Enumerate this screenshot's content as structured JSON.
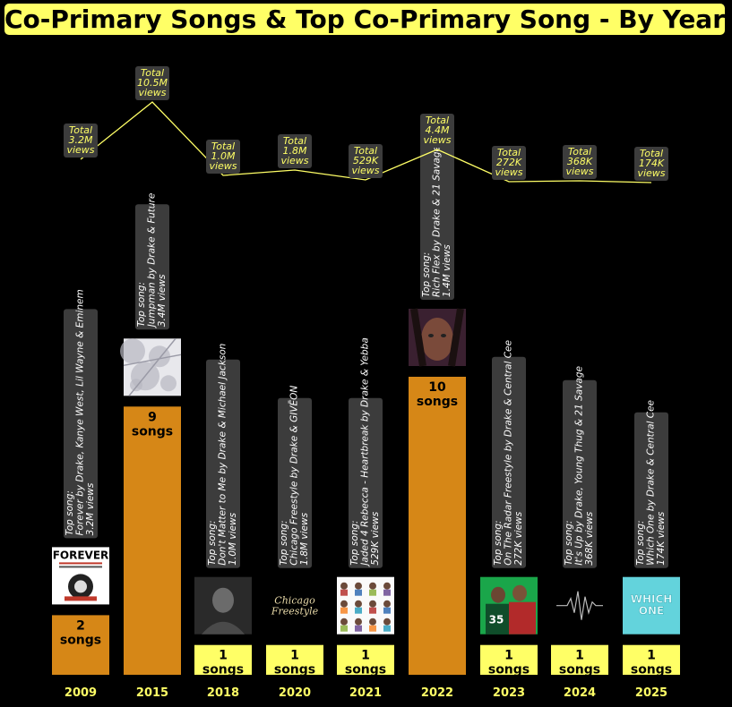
{
  "title": "Co-Primary Songs & Top Co-Primary Song - By Year",
  "colors": {
    "background": "#000000",
    "bar_large": "#d68717",
    "bar_single": "#ffff66",
    "line": "#ffff66",
    "label_box": "#3c3c3c",
    "total_text": "#ffff66",
    "top_song_text": "#ffffff",
    "year_text": "#ffff66"
  },
  "chart_data": {
    "type": "bar",
    "categories": [
      "2009",
      "2015",
      "2018",
      "2020",
      "2021",
      "2022",
      "2023",
      "2024",
      "2025"
    ],
    "series": [
      {
        "values": [
          2,
          9,
          1,
          1,
          1,
          10,
          1,
          1,
          1
        ],
        "labels": [
          "2\nsongs",
          "9\nsongs",
          "1\nsongs",
          "1\nsongs",
          "1\nsongs",
          "10\nsongs",
          "1\nsongs",
          "1\nsongs",
          "1\nsongs"
        ]
      },
      {
        "type": "line",
        "values_millions": [
          3.2,
          10.5,
          1.0,
          1.8,
          0.529,
          4.4,
          0.272,
          0.368,
          0.174
        ],
        "labels": [
          "Total\n3.2M\nviews",
          "Total\n10.5M\nviews",
          "Total\n1.0M\nviews",
          "Total\n1.8M\nviews",
          "Total\n529K\nviews",
          "Total\n4.4M\nviews",
          "Total\n272K\nviews",
          "Total\n368K\nviews",
          "Total\n174K\nviews"
        ]
      }
    ],
    "top_songs": [
      "Top song:\nForever by Drake, Kanye West, Lil Wayne & Eminem\n3.2M views",
      "Top song:\nJumpman by Drake & Future\n3.4M views",
      "Top song:\nDon't Matter to Me by Drake & Michael Jackson\n1.0M views",
      "Top song:\nChicago Freestyle by Drake & GIVĒON\n1.8M views",
      "Top song:\nJaded 4 Rebecca - Heartbreak by Drake & Yebba\n529K views",
      "Top song:\nRich Flex by Drake & 21 Savage\n1.4M views",
      "Top song:\nOn The Radar Freestyle by Drake & Central Cee\n272K views",
      "Top song:\nIt's Up by Drake, Young Thug & 21 Savage\n368K views",
      "Top song:\nWhich One by Drake & Central Cee\n174K views"
    ],
    "thumbnails": [
      {
        "kind": "forever-cover",
        "text": "FOREVER"
      },
      {
        "kind": "white-marble-cover"
      },
      {
        "kind": "portrait-cover"
      },
      {
        "kind": "script-cover",
        "text": "Chicago\nFreestyle"
      },
      {
        "kind": "grid-cover"
      },
      {
        "kind": "face-cover"
      },
      {
        "kind": "duo-green-cover"
      },
      {
        "kind": "waveform-cover"
      },
      {
        "kind": "cyan-cover",
        "text": "WHICH\nONE"
      }
    ]
  }
}
